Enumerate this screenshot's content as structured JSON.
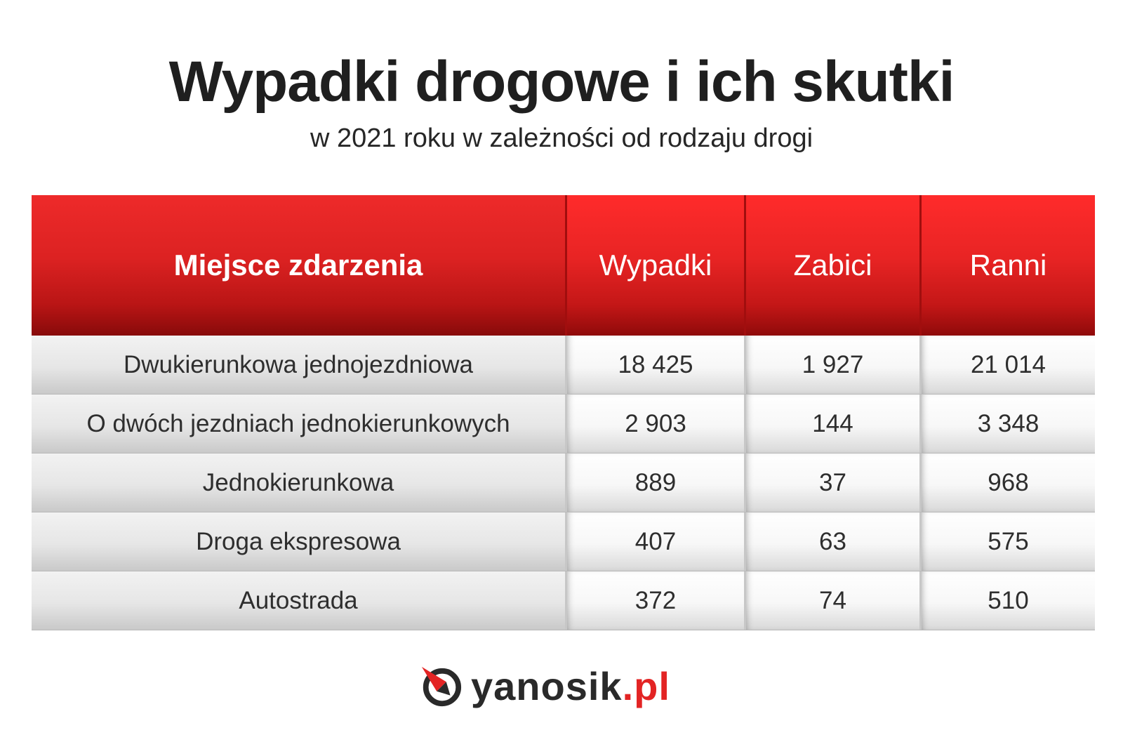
{
  "title": "Wypadki drogowe i ich skutki",
  "subtitle": "w 2021 roku w zależności od rodzaju drogi",
  "colors": {
    "header_red": "#e82424",
    "header_dark": "#8f0a0a",
    "row_gray": "#e6e6e6",
    "logo_red": "#e32424"
  },
  "chart_data": {
    "type": "table",
    "title": "Wypadki drogowe i ich skutki",
    "subtitle": "w 2021 roku w zależności od rodzaju drogi",
    "columns": [
      "Miejsce zdarzenia",
      "Wypadki",
      "Zabici",
      "Ranni"
    ],
    "rows": [
      [
        "Dwukierunkowa jednojezdniowa",
        "18 425",
        "1 927",
        "21 014"
      ],
      [
        "O dwóch jezdniach jednokierunkowych",
        "2 903",
        "144",
        "3 348"
      ],
      [
        "Jednokierunkowa",
        "889",
        "37",
        "968"
      ],
      [
        "Droga ekspresowa",
        "407",
        "63",
        "575"
      ],
      [
        "Autostrada",
        "372",
        "74",
        "510"
      ]
    ]
  },
  "logo": {
    "icon": "yanosik-compass-icon",
    "name": "yanosik",
    "dot": ".",
    "tld": "pl"
  }
}
